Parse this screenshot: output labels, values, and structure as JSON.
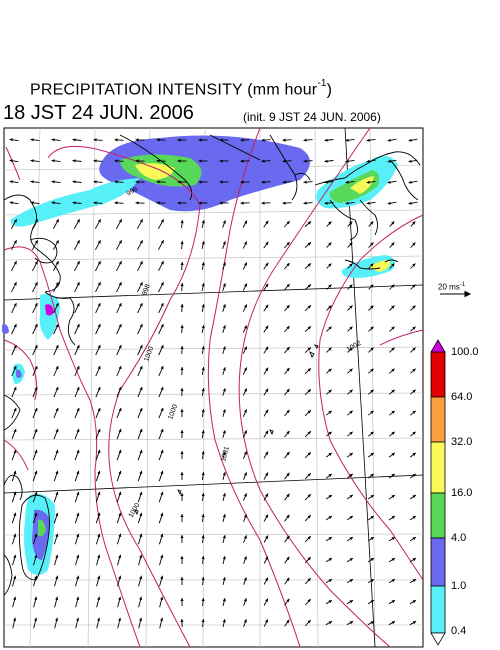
{
  "title": {
    "main_prefix": "PRECIPITATION INTENSITY (mm hour",
    "main_exp": "-1",
    "main_suffix": ")",
    "valid_time": "18 JST 24 JUN. 2006",
    "init_time": "(init. 9 JST 24 JUN. 2006)"
  },
  "reference_vector": {
    "label_prefix": "20 ms",
    "label_exp": "-1"
  },
  "colorbar": {
    "levels": [
      "100.0",
      "64.0",
      "32.0",
      "16.0",
      "4.0",
      "1.0",
      "0.4"
    ],
    "colors": [
      "#d000e0",
      "#e00000",
      "#f8a040",
      "#f8f858",
      "#58d858",
      "#6868f0",
      "#58f0f8",
      "#ffffff"
    ]
  },
  "isobar_labels": [
    "998",
    "996",
    "1000",
    "1001",
    "1002",
    "1000",
    "1000"
  ],
  "colors": {
    "isobar": "#c0206c",
    "grid": "#b0b0b0",
    "coast": "#000000",
    "arrow": "#000000"
  }
}
